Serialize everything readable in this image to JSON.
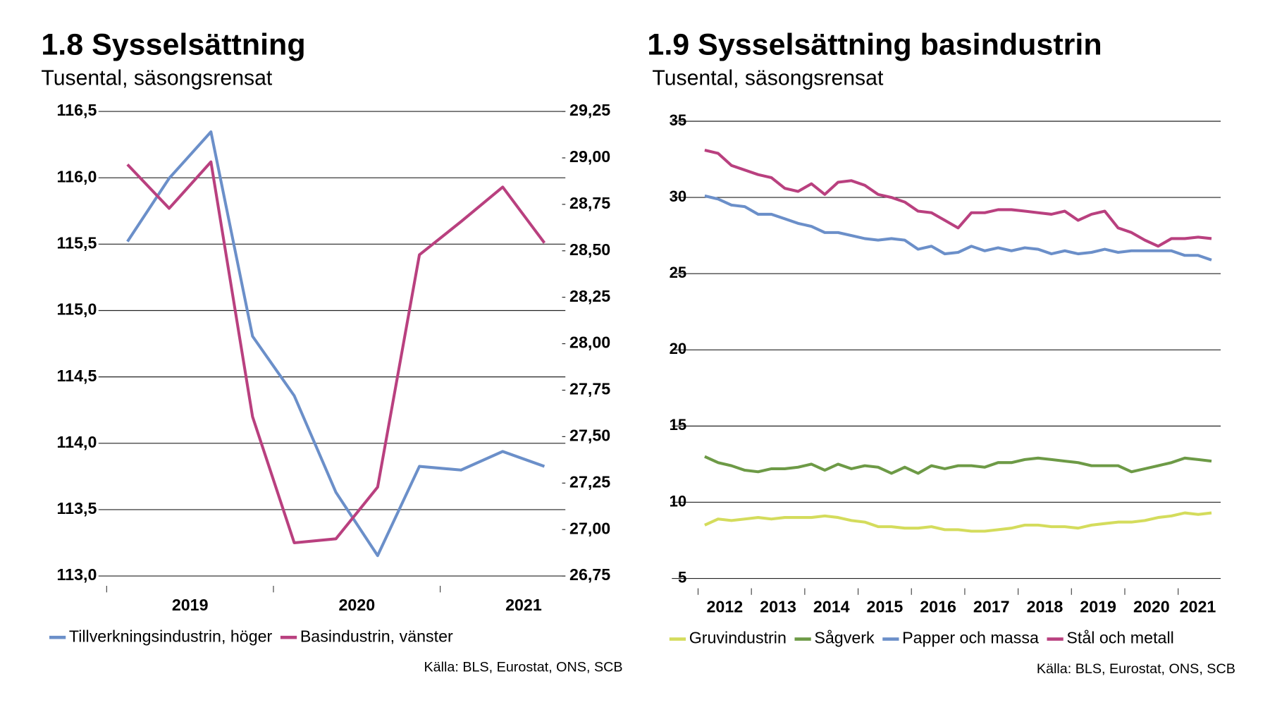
{
  "chart_data": [
    {
      "type": "line",
      "title": "1.8 Sysselsättning",
      "subtitle": "Tusental, säsongsrensat",
      "source": "Källa: BLS, Eurostat, ONS, SCB",
      "categories": [
        null,
        null,
        null,
        null,
        null,
        null,
        null,
        null,
        null,
        null,
        null
      ],
      "x_groups": [
        "2019",
        "2020",
        "2021"
      ],
      "ylim": [
        113.0,
        116.5
      ],
      "yticks": [
        {
          "value": 113.0,
          "label": "113,0"
        },
        {
          "value": 113.5,
          "label": "113,5"
        },
        {
          "value": 114.0,
          "label": "114,0"
        },
        {
          "value": 114.5,
          "label": "114,5"
        },
        {
          "value": 115.0,
          "label": "115,0"
        },
        {
          "value": 115.5,
          "label": "115,5"
        },
        {
          "value": 116.0,
          "label": "116,0"
        },
        {
          "value": 116.5,
          "label": "116,5"
        }
      ],
      "y2lim": [
        26.75,
        29.25
      ],
      "y2ticks": [
        {
          "value": 26.75,
          "label": "26,75"
        },
        {
          "value": 27.0,
          "label": "27,00"
        },
        {
          "value": 27.25,
          "label": "27,25"
        },
        {
          "value": 27.5,
          "label": "27,50"
        },
        {
          "value": 27.75,
          "label": "27,75"
        },
        {
          "value": 28.0,
          "label": "28,00"
        },
        {
          "value": 28.25,
          "label": "28,25"
        },
        {
          "value": 28.5,
          "label": "28,50"
        },
        {
          "value": 28.75,
          "label": "28,75"
        },
        {
          "value": 29.0,
          "label": "29,00"
        },
        {
          "value": 29.25,
          "label": "29,25"
        }
      ],
      "grid": true,
      "series": [
        {
          "name": "Tillverkningsindustrin, höger",
          "color": "#6b8fc9",
          "axis": "y2",
          "values": [
            28.55,
            28.89,
            29.14,
            28.04,
            27.72,
            27.2,
            26.86,
            27.34,
            27.32,
            27.42,
            27.34
          ]
        },
        {
          "name": "Basindustrin, vänster",
          "color": "#b9407f",
          "values": [
            116.1,
            115.77,
            116.12,
            114.2,
            113.25,
            113.28,
            113.67,
            115.42,
            115.67,
            115.93,
            115.51
          ]
        }
      ]
    },
    {
      "type": "line",
      "title": "1.9 Sysselsättning basindustrin",
      "subtitle": "Tusental, säsongsrensat",
      "source": "Källa: BLS, Eurostat, ONS, SCB",
      "categories": [
        null,
        null,
        null,
        null,
        null,
        null,
        null,
        null,
        null,
        null,
        null,
        null,
        null,
        null,
        null,
        null,
        null,
        null,
        null,
        null,
        null,
        null,
        null,
        null,
        null,
        null,
        null,
        null,
        null,
        null,
        null,
        null,
        null,
        null,
        null,
        null,
        null,
        null,
        null
      ],
      "x_groups": [
        "2012",
        "2013",
        "2014",
        "2015",
        "2016",
        "2017",
        "2018",
        "2019",
        "2020",
        "2021"
      ],
      "ylim": [
        5,
        35
      ],
      "yticks": [
        5,
        10,
        15,
        20,
        25,
        30,
        35
      ],
      "grid": true,
      "series": [
        {
          "name": "Gruvindustrin",
          "color": "#d4dc5c",
          "values": [
            8.5,
            8.9,
            8.8,
            8.9,
            9.0,
            8.9,
            9.0,
            9.0,
            9.0,
            9.1,
            9.0,
            8.8,
            8.7,
            8.4,
            8.4,
            8.3,
            8.3,
            8.4,
            8.2,
            8.2,
            8.1,
            8.1,
            8.2,
            8.3,
            8.5,
            8.5,
            8.4,
            8.4,
            8.3,
            8.5,
            8.6,
            8.7,
            8.7,
            8.8,
            9.0,
            9.1,
            9.3,
            9.2,
            9.3
          ]
        },
        {
          "name": "Sågverk",
          "color": "#6d9a46",
          "values": [
            13.0,
            12.6,
            12.4,
            12.1,
            12.0,
            12.2,
            12.2,
            12.3,
            12.5,
            12.1,
            12.5,
            12.2,
            12.4,
            12.3,
            11.9,
            12.3,
            11.9,
            12.4,
            12.2,
            12.4,
            12.4,
            12.3,
            12.6,
            12.6,
            12.8,
            12.9,
            12.8,
            12.7,
            12.6,
            12.4,
            12.4,
            12.4,
            12.0,
            12.2,
            12.4,
            12.6,
            12.9,
            12.8,
            12.7
          ]
        },
        {
          "name": "Papper och massa",
          "color": "#6b8fc9",
          "values": [
            30.1,
            29.9,
            29.5,
            29.4,
            28.9,
            28.9,
            28.6,
            28.3,
            28.1,
            27.7,
            27.7,
            27.5,
            27.3,
            27.2,
            27.3,
            27.2,
            26.6,
            26.8,
            26.3,
            26.4,
            26.8,
            26.5,
            26.7,
            26.5,
            26.7,
            26.6,
            26.3,
            26.5,
            26.3,
            26.4,
            26.6,
            26.4,
            26.5,
            26.5,
            26.5,
            26.5,
            26.2,
            26.2,
            25.9
          ]
        },
        {
          "name": "Stål och metall",
          "color": "#b9407f",
          "values": [
            33.1,
            32.9,
            32.1,
            31.8,
            31.5,
            31.3,
            30.6,
            30.4,
            30.9,
            30.2,
            31.0,
            31.1,
            30.8,
            30.2,
            30.0,
            29.7,
            29.1,
            29.0,
            28.5,
            28.0,
            29.0,
            29.0,
            29.2,
            29.2,
            29.1,
            29.0,
            28.9,
            29.1,
            28.5,
            28.9,
            29.1,
            28.0,
            27.7,
            27.2,
            26.8,
            27.3,
            27.3,
            27.4,
            27.3
          ]
        }
      ]
    }
  ]
}
